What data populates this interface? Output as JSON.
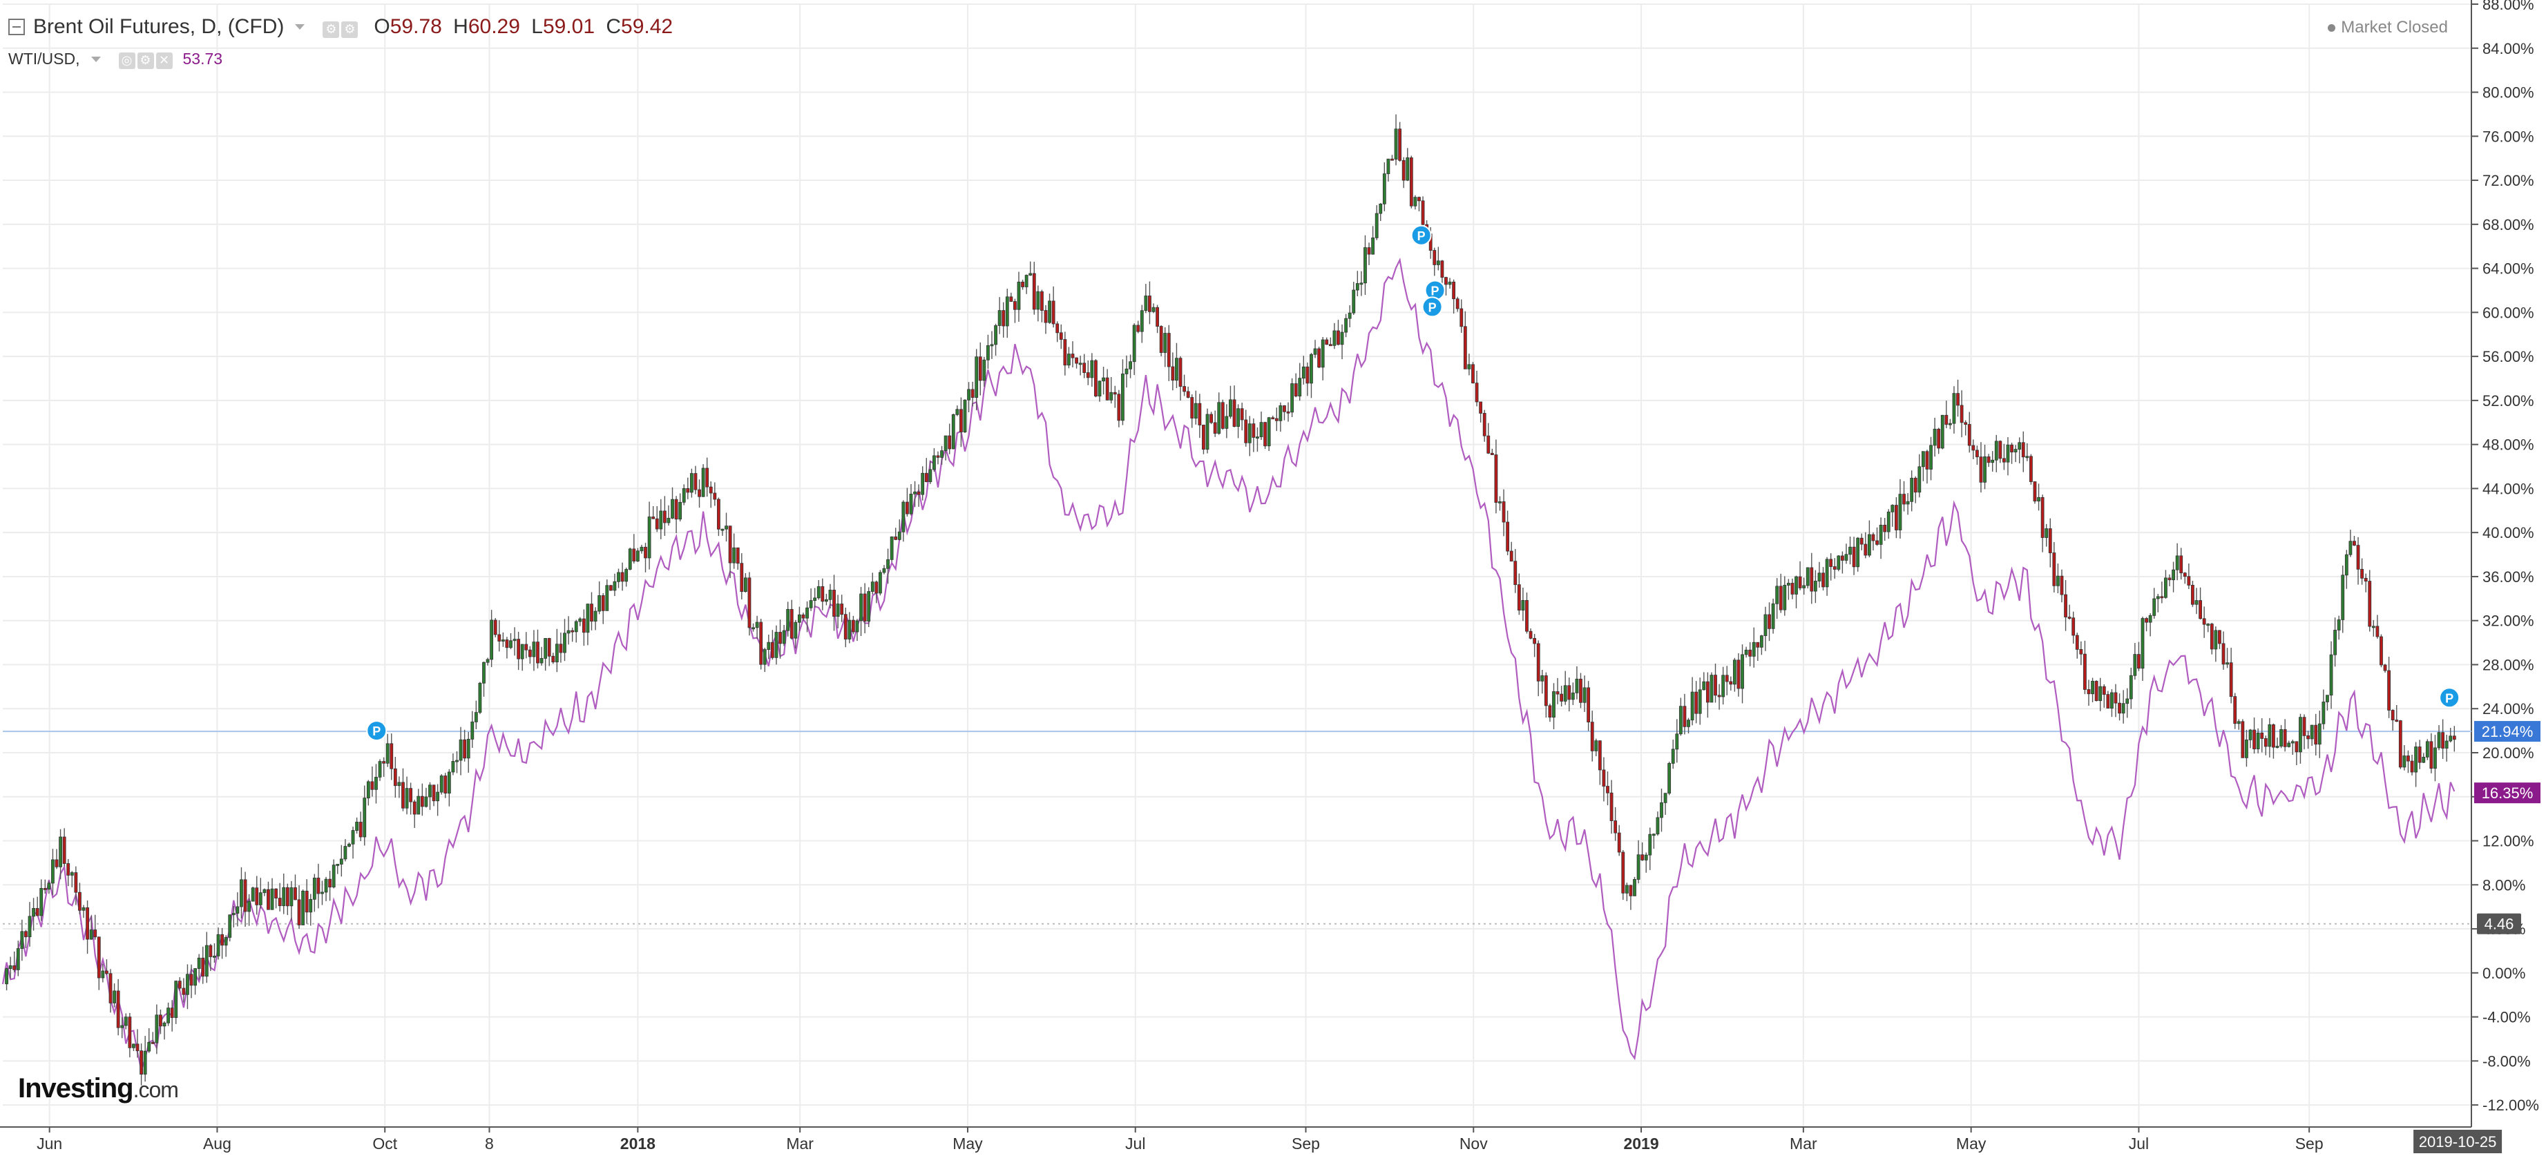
{
  "legend": {
    "main_title": "Brent Oil Futures, D, (CFD)",
    "open_label": "O",
    "open": "59.78",
    "high_label": "H",
    "high": "60.29",
    "low_label": "L",
    "low": "59.01",
    "close_label": "C",
    "close": "59.42",
    "second_title": "WTI/USD,",
    "second_value": "53.73"
  },
  "status": {
    "market": "Market Closed"
  },
  "logo": {
    "brand": "Investing",
    "suffix": ".com"
  },
  "colors": {
    "up": "#2e7d32",
    "down": "#b71c1c",
    "line": "#b05cc0",
    "brent_label": "#3a78d8",
    "wti_label": "#8b1a8b",
    "mark": "#1a9be6",
    "bg": "#ffffff"
  },
  "icons": [
    "collapse-icon",
    "settings-icon",
    "hide-icon",
    "close-icon",
    "status-dot-icon",
    "p-marker-icon"
  ],
  "chart_data": {
    "type": "line",
    "ylim": [
      -14,
      88
    ],
    "y_ticks": [
      "88.00%",
      "84.00%",
      "80.00%",
      "76.00%",
      "72.00%",
      "68.00%",
      "64.00%",
      "60.00%",
      "56.00%",
      "52.00%",
      "48.00%",
      "44.00%",
      "40.00%",
      "36.00%",
      "32.00%",
      "28.00%",
      "24.00%",
      "20.00%",
      "16.00%",
      "12.00%",
      "8.00%",
      "4.00%",
      "0.00%",
      "-4.00%",
      "-8.00%",
      "-12.00%"
    ],
    "y_tick_values": [
      88,
      84,
      80,
      76,
      72,
      68,
      64,
      60,
      56,
      52,
      48,
      44,
      40,
      36,
      32,
      28,
      24,
      20,
      16,
      12,
      8,
      4,
      0,
      -4,
      -8,
      -12
    ],
    "x_ticks": [
      "Jun",
      "Aug",
      "Oct",
      "8",
      "2018",
      "Mar",
      "May",
      "Jul",
      "Sep",
      "Nov",
      "2019",
      "Mar",
      "May",
      "Jul",
      "Sep"
    ],
    "x_tick_dates": [
      "2017-06-01",
      "2017-08-01",
      "2017-10-01",
      "2017-11-08",
      "2018-01-01",
      "2018-03-01",
      "2018-05-01",
      "2018-07-01",
      "2018-09-01",
      "2018-11-01",
      "2019-01-01",
      "2019-03-01",
      "2019-05-01",
      "2019-07-01",
      "2019-09-01"
    ],
    "x_range": [
      "2017-05-15",
      "2019-10-30"
    ],
    "current_x": "2019-10-25",
    "series": [
      {
        "name": "Brent Oil Futures, D, (CFD)",
        "style": "candlestick",
        "last_value_label": "21.94%",
        "last_value": 21.94,
        "points": [
          [
            "2017-05-15",
            -1
          ],
          [
            "2017-06-05",
            11
          ],
          [
            "2017-06-15",
            4
          ],
          [
            "2017-06-25",
            -3
          ],
          [
            "2017-07-05",
            -8
          ],
          [
            "2017-07-15",
            -3
          ],
          [
            "2017-07-25",
            1
          ],
          [
            "2017-08-01",
            2
          ],
          [
            "2017-08-10",
            7
          ],
          [
            "2017-08-20",
            7
          ],
          [
            "2017-09-01",
            6
          ],
          [
            "2017-09-12",
            9
          ],
          [
            "2017-09-22",
            14
          ],
          [
            "2017-10-01",
            20
          ],
          [
            "2017-10-10",
            15
          ],
          [
            "2017-10-20",
            17
          ],
          [
            "2017-11-01",
            21
          ],
          [
            "2017-11-08",
            31
          ],
          [
            "2017-11-20",
            29
          ],
          [
            "2017-12-01",
            29
          ],
          [
            "2017-12-15",
            33
          ],
          [
            "2018-01-01",
            38
          ],
          [
            "2018-01-10",
            42
          ],
          [
            "2018-01-25",
            45
          ],
          [
            "2018-02-05",
            38
          ],
          [
            "2018-02-15",
            29
          ],
          [
            "2018-02-28",
            32
          ],
          [
            "2018-03-10",
            35
          ],
          [
            "2018-03-20",
            31
          ],
          [
            "2018-04-01",
            37
          ],
          [
            "2018-04-10",
            43
          ],
          [
            "2018-04-20",
            47
          ],
          [
            "2018-05-01",
            52
          ],
          [
            "2018-05-10",
            58
          ],
          [
            "2018-05-22",
            63
          ],
          [
            "2018-06-05",
            57
          ],
          [
            "2018-06-15",
            54
          ],
          [
            "2018-06-25",
            52
          ],
          [
            "2018-07-05",
            61
          ],
          [
            "2018-07-15",
            55
          ],
          [
            "2018-07-25",
            49
          ],
          [
            "2018-08-05",
            51
          ],
          [
            "2018-08-15",
            48
          ],
          [
            "2018-08-25",
            52
          ],
          [
            "2018-09-05",
            56
          ],
          [
            "2018-09-15",
            59
          ],
          [
            "2018-09-25",
            66
          ],
          [
            "2018-10-03",
            76
          ],
          [
            "2018-10-15",
            67
          ],
          [
            "2018-10-25",
            61
          ],
          [
            "2018-11-05",
            49
          ],
          [
            "2018-11-15",
            37
          ],
          [
            "2018-11-28",
            24
          ],
          [
            "2018-12-10",
            26
          ],
          [
            "2018-12-20",
            16
          ],
          [
            "2018-12-27",
            7
          ],
          [
            "2019-01-05",
            12
          ],
          [
            "2019-01-15",
            23
          ],
          [
            "2019-01-25",
            26
          ],
          [
            "2019-02-05",
            27
          ],
          [
            "2019-02-20",
            34
          ],
          [
            "2019-03-05",
            36
          ],
          [
            "2019-03-20",
            38
          ],
          [
            "2019-04-05",
            42
          ],
          [
            "2019-04-25",
            52
          ],
          [
            "2019-05-05",
            46
          ],
          [
            "2019-05-20",
            48
          ],
          [
            "2019-06-01",
            36
          ],
          [
            "2019-06-12",
            26
          ],
          [
            "2019-06-25",
            24
          ],
          [
            "2019-07-05",
            33
          ],
          [
            "2019-07-15",
            37
          ],
          [
            "2019-07-30",
            30
          ],
          [
            "2019-08-07",
            21
          ],
          [
            "2019-08-20",
            21
          ],
          [
            "2019-09-05",
            22
          ],
          [
            "2019-09-16",
            40
          ],
          [
            "2019-09-25",
            31
          ],
          [
            "2019-10-05",
            19
          ],
          [
            "2019-10-15",
            20
          ],
          [
            "2019-10-25",
            21.94
          ]
        ]
      },
      {
        "name": "WTI/USD,",
        "style": "line",
        "last_value_label": "16.35%",
        "last_value": 16.35,
        "points": [
          [
            "2017-05-15",
            -1
          ],
          [
            "2017-06-05",
            9
          ],
          [
            "2017-06-15",
            4
          ],
          [
            "2017-06-25",
            -3
          ],
          [
            "2017-07-05",
            -8
          ],
          [
            "2017-07-15",
            -3
          ],
          [
            "2017-07-25",
            0
          ],
          [
            "2017-08-01",
            2
          ],
          [
            "2017-08-10",
            6
          ],
          [
            "2017-08-20",
            5
          ],
          [
            "2017-09-01",
            2
          ],
          [
            "2017-09-12",
            5
          ],
          [
            "2017-09-22",
            8
          ],
          [
            "2017-10-01",
            12
          ],
          [
            "2017-10-10",
            7
          ],
          [
            "2017-10-20",
            9
          ],
          [
            "2017-11-01",
            15
          ],
          [
            "2017-11-08",
            22
          ],
          [
            "2017-11-20",
            20
          ],
          [
            "2017-12-01",
            22
          ],
          [
            "2017-12-15",
            25
          ],
          [
            "2018-01-01",
            33
          ],
          [
            "2018-01-10",
            37
          ],
          [
            "2018-01-25",
            40
          ],
          [
            "2018-02-05",
            35
          ],
          [
            "2018-02-15",
            29
          ],
          [
            "2018-02-28",
            31
          ],
          [
            "2018-03-10",
            33
          ],
          [
            "2018-03-20",
            31
          ],
          [
            "2018-04-01",
            35
          ],
          [
            "2018-04-10",
            42
          ],
          [
            "2018-04-20",
            46
          ],
          [
            "2018-05-01",
            49
          ],
          [
            "2018-05-10",
            54
          ],
          [
            "2018-05-22",
            56
          ],
          [
            "2018-06-05",
            42
          ],
          [
            "2018-06-15",
            41
          ],
          [
            "2018-06-25",
            42
          ],
          [
            "2018-07-05",
            53
          ],
          [
            "2018-07-15",
            50
          ],
          [
            "2018-07-25",
            46
          ],
          [
            "2018-08-05",
            45
          ],
          [
            "2018-08-15",
            43
          ],
          [
            "2018-08-25",
            46
          ],
          [
            "2018-09-05",
            50
          ],
          [
            "2018-09-15",
            52
          ],
          [
            "2018-09-25",
            58
          ],
          [
            "2018-10-03",
            65
          ],
          [
            "2018-10-15",
            57
          ],
          [
            "2018-10-25",
            50
          ],
          [
            "2018-11-05",
            42
          ],
          [
            "2018-11-15",
            29
          ],
          [
            "2018-11-28",
            13
          ],
          [
            "2018-12-10",
            13
          ],
          [
            "2018-12-20",
            5
          ],
          [
            "2018-12-27",
            -8
          ],
          [
            "2019-01-05",
            -2
          ],
          [
            "2019-01-15",
            10
          ],
          [
            "2019-01-25",
            12
          ],
          [
            "2019-02-05",
            14
          ],
          [
            "2019-02-20",
            21
          ],
          [
            "2019-03-05",
            24
          ],
          [
            "2019-03-20",
            27
          ],
          [
            "2019-04-05",
            32
          ],
          [
            "2019-04-25",
            42
          ],
          [
            "2019-05-05",
            33
          ],
          [
            "2019-05-20",
            36
          ],
          [
            "2019-06-01",
            25
          ],
          [
            "2019-06-12",
            13
          ],
          [
            "2019-06-25",
            12
          ],
          [
            "2019-07-05",
            25
          ],
          [
            "2019-07-15",
            29
          ],
          [
            "2019-07-30",
            22
          ],
          [
            "2019-08-07",
            16
          ],
          [
            "2019-08-20",
            16
          ],
          [
            "2019-09-05",
            17
          ],
          [
            "2019-09-16",
            25
          ],
          [
            "2019-09-25",
            20
          ],
          [
            "2019-10-05",
            13
          ],
          [
            "2019-10-15",
            15
          ],
          [
            "2019-10-25",
            16.35
          ]
        ]
      }
    ],
    "reference_lines": [
      {
        "value": 21.94,
        "style": "solid"
      },
      {
        "value": 4.46,
        "style": "dotted",
        "label": "4.46"
      }
    ],
    "markers": [
      {
        "x": "2017-09-28",
        "y": 22,
        "label": "P"
      },
      {
        "x": "2018-10-13",
        "y": 67,
        "label": "P"
      },
      {
        "x": "2018-10-18",
        "y": 62,
        "label": "P"
      },
      {
        "x": "2018-10-17",
        "y": 60.5,
        "label": "P"
      },
      {
        "x": "2019-10-22",
        "y": 25,
        "label": "P"
      }
    ],
    "grid": true,
    "legend_position": "top-left"
  }
}
